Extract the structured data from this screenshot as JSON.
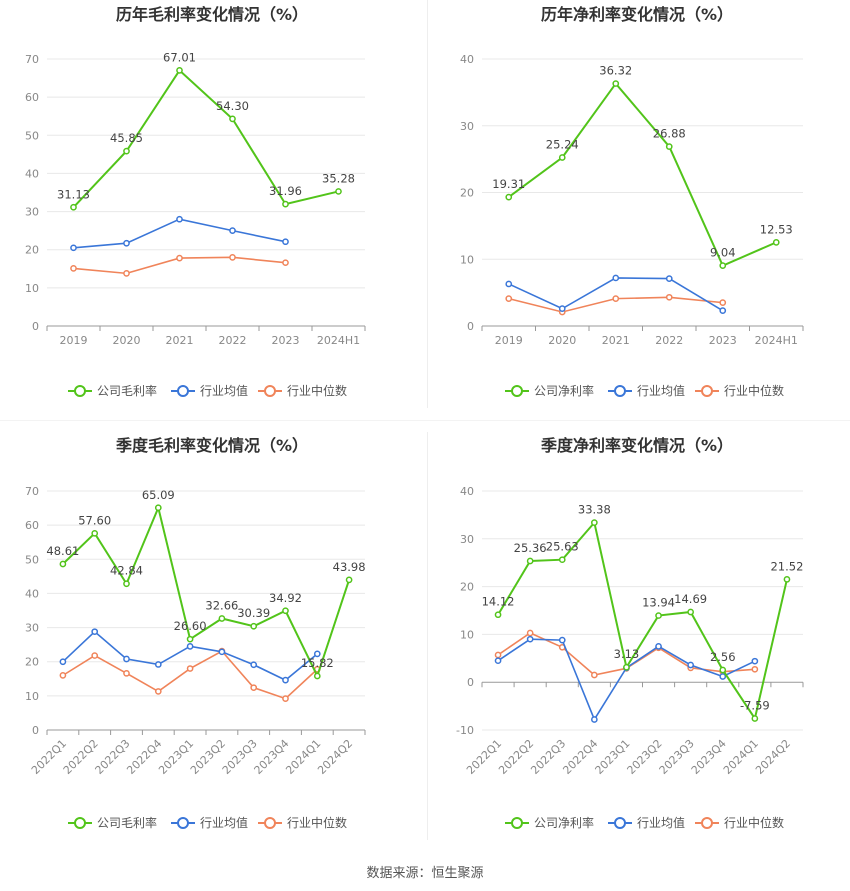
{
  "source": "数据来源：恒生聚源",
  "colors": {
    "company": "#52c41a",
    "avg": "#3a76d8",
    "median": "#f0845a"
  },
  "chart_data": [
    {
      "type": "line",
      "title": "历年毛利率变化情况（%）",
      "categories": [
        "2019",
        "2020",
        "2021",
        "2022",
        "2023",
        "2024H1"
      ],
      "ylim": [
        0,
        70
      ],
      "yticks": [
        0,
        10,
        20,
        30,
        40,
        50,
        60,
        70
      ],
      "series": [
        {
          "name": "公司毛利率",
          "values": [
            31.13,
            45.85,
            67.01,
            54.3,
            31.96,
            35.28
          ],
          "labels": [
            "31.13",
            "45.85",
            "67.01",
            "54.30",
            "31.96",
            "35.28"
          ]
        },
        {
          "name": "行业均值",
          "values": [
            20.5,
            21.7,
            28.0,
            25.0,
            22.1,
            null
          ]
        },
        {
          "name": "行业中位数",
          "values": [
            15.1,
            13.8,
            17.8,
            18.0,
            16.6,
            null
          ]
        }
      ],
      "legend": [
        "公司毛利率",
        "行业均值",
        "行业中位数"
      ]
    },
    {
      "type": "line",
      "title": "历年净利率变化情况（%）",
      "categories": [
        "2019",
        "2020",
        "2021",
        "2022",
        "2023",
        "2024H1"
      ],
      "ylim": [
        0,
        40
      ],
      "yticks": [
        0,
        10,
        20,
        30,
        40
      ],
      "series": [
        {
          "name": "公司净利率",
          "values": [
            19.31,
            25.24,
            36.32,
            26.88,
            9.04,
            12.53
          ],
          "labels": [
            "19.31",
            "25.24",
            "36.32",
            "26.88",
            "9.04",
            "12.53"
          ]
        },
        {
          "name": "行业均值",
          "values": [
            6.3,
            2.6,
            7.2,
            7.1,
            2.3,
            null
          ]
        },
        {
          "name": "行业中位数",
          "values": [
            4.1,
            2.1,
            4.1,
            4.3,
            3.5,
            null
          ]
        }
      ],
      "legend": [
        "公司净利率",
        "行业均值",
        "行业中位数"
      ]
    },
    {
      "type": "line",
      "title": "季度毛利率变化情况（%）",
      "categories": [
        "2022Q1",
        "2022Q2",
        "2022Q3",
        "2022Q4",
        "2023Q1",
        "2023Q2",
        "2023Q3",
        "2023Q4",
        "2024Q1",
        "2024Q2"
      ],
      "ylim": [
        0,
        70
      ],
      "yticks": [
        0,
        10,
        20,
        30,
        40,
        50,
        60,
        70
      ],
      "series": [
        {
          "name": "公司毛利率",
          "values": [
            48.61,
            57.6,
            42.84,
            65.09,
            26.6,
            32.66,
            30.39,
            34.92,
            15.82,
            43.98
          ],
          "labels": [
            "48.61",
            "57.60",
            "42.84",
            "65.09",
            "26.60",
            "32.66",
            "30.39",
            "34.92",
            "15.82",
            "43.98"
          ]
        },
        {
          "name": "行业均值",
          "values": [
            20.0,
            28.8,
            20.8,
            19.2,
            24.5,
            22.9,
            19.1,
            14.6,
            22.3,
            null
          ]
        },
        {
          "name": "行业中位数",
          "values": [
            16.0,
            21.8,
            16.6,
            11.3,
            18.0,
            23.1,
            12.4,
            9.2,
            17.8,
            null
          ]
        }
      ],
      "legend": [
        "公司毛利率",
        "行业均值",
        "行业中位数"
      ]
    },
    {
      "type": "line",
      "title": "季度净利率变化情况（%）",
      "categories": [
        "2022Q1",
        "2022Q2",
        "2022Q3",
        "2022Q4",
        "2023Q1",
        "2023Q2",
        "2023Q3",
        "2023Q4",
        "2024Q1",
        "2024Q2"
      ],
      "ylim": [
        -10,
        40
      ],
      "yticks": [
        -10,
        0,
        10,
        20,
        30,
        40
      ],
      "series": [
        {
          "name": "公司净利率",
          "values": [
            14.12,
            25.36,
            25.63,
            33.38,
            3.13,
            13.94,
            14.69,
            2.56,
            -7.59,
            21.52
          ],
          "labels": [
            "14.12",
            "25.36",
            "25.63",
            "33.38",
            "3.13",
            "13.94",
            "14.69",
            "2.56",
            "-7.59",
            "21.52"
          ]
        },
        {
          "name": "行业均值",
          "values": [
            4.5,
            9.0,
            8.8,
            -7.8,
            3.0,
            7.5,
            3.6,
            1.2,
            4.4,
            null
          ]
        },
        {
          "name": "行业中位数",
          "values": [
            5.7,
            10.3,
            7.3,
            1.5,
            2.9,
            7.2,
            3.0,
            2.2,
            2.7,
            null
          ]
        }
      ],
      "legend": [
        "公司净利率",
        "行业均值",
        "行业中位数"
      ]
    }
  ]
}
